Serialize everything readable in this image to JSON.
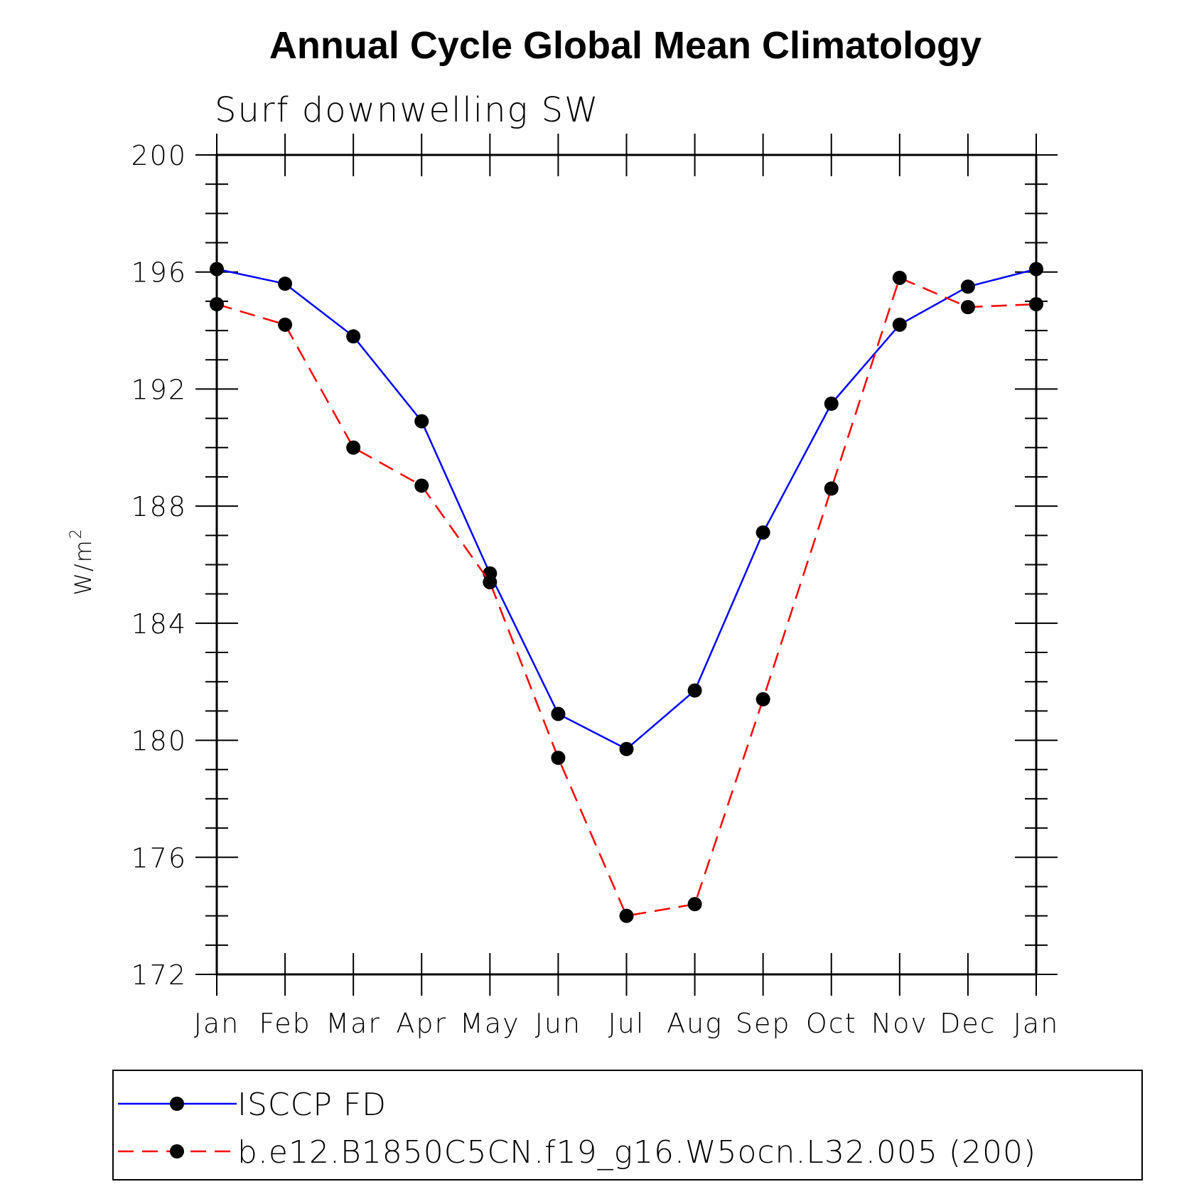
{
  "chart_data": {
    "type": "line",
    "title": "Annual Cycle Global Mean Climatology",
    "subtitle": "Surf downwelling SW",
    "ylabel": "W/m",
    "ylabel_superscript": "2",
    "xlabel": "",
    "ylim": [
      172,
      200
    ],
    "yticks": [
      172,
      176,
      180,
      184,
      188,
      192,
      196,
      200
    ],
    "y_minor_step": 1,
    "categories": [
      "Jan",
      "Feb",
      "Mar",
      "Apr",
      "May",
      "Jun",
      "Jul",
      "Aug",
      "Sep",
      "Oct",
      "Nov",
      "Dec",
      "Jan"
    ],
    "grid": false,
    "legend_position": "bottom",
    "series": [
      {
        "name": "ISCCP FD",
        "color": "#0000ff",
        "dashed": false,
        "values": [
          196.1,
          195.6,
          193.8,
          190.9,
          185.7,
          180.9,
          179.7,
          181.7,
          187.1,
          191.5,
          194.2,
          195.5,
          196.1
        ]
      },
      {
        "name": "b.e12.B1850C5CN.f19_g16.W5ocn.L32.005 (200)",
        "color": "#ff0000",
        "dashed": true,
        "values": [
          194.9,
          194.2,
          190.0,
          188.7,
          185.4,
          179.4,
          174.0,
          174.4,
          181.4,
          188.6,
          195.8,
          194.8,
          194.9
        ]
      }
    ]
  }
}
